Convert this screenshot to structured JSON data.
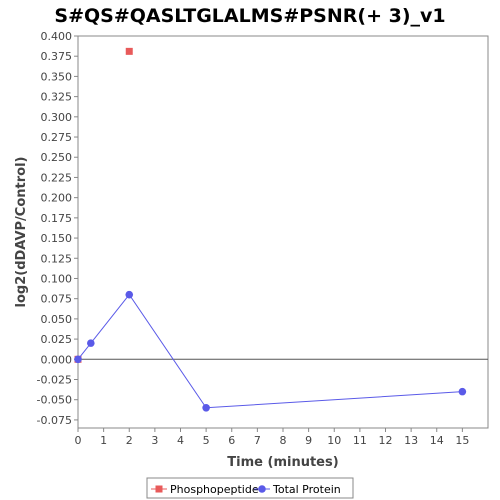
{
  "chart_data": {
    "type": "line",
    "title": "S#QS#QASLTGLALMS#PSNR(+ 3)_v1",
    "xlabel": "Time (minutes)",
    "ylabel": "log2(dDAVP/Control)",
    "xlim": [
      0,
      16
    ],
    "ylim": [
      -0.085,
      0.4
    ],
    "x_ticks": [
      0,
      1,
      2,
      3,
      4,
      5,
      6,
      7,
      8,
      9,
      10,
      11,
      12,
      13,
      14,
      15
    ],
    "y_ticks": [
      -0.075,
      -0.05,
      -0.025,
      0.0,
      0.025,
      0.05,
      0.075,
      0.1,
      0.125,
      0.15,
      0.175,
      0.2,
      0.225,
      0.25,
      0.275,
      0.3,
      0.325,
      0.35,
      0.375,
      0.4
    ],
    "y_tick_labels": [
      "-0.075",
      "-0.050",
      "-0.025",
      "0.000",
      "0.025",
      "0.050",
      "0.075",
      "0.100",
      "0.125",
      "0.150",
      "0.175",
      "0.200",
      "0.225",
      "0.250",
      "0.275",
      "0.300",
      "0.325",
      "0.350",
      "0.375",
      "0.400"
    ],
    "zero_line": true,
    "grid": false,
    "legend_position": "bottom",
    "series": [
      {
        "name": "Phosphopeptide",
        "color": "#e85a5a",
        "marker": "square",
        "line": false,
        "x": [
          0,
          2
        ],
        "y": [
          0.0,
          0.381
        ]
      },
      {
        "name": "Total Protein",
        "color": "#5a5ae8",
        "marker": "circle",
        "line": true,
        "x": [
          0,
          0.5,
          2,
          5,
          15
        ],
        "y": [
          0.0,
          0.02,
          0.08,
          -0.06,
          -0.04
        ]
      }
    ]
  }
}
